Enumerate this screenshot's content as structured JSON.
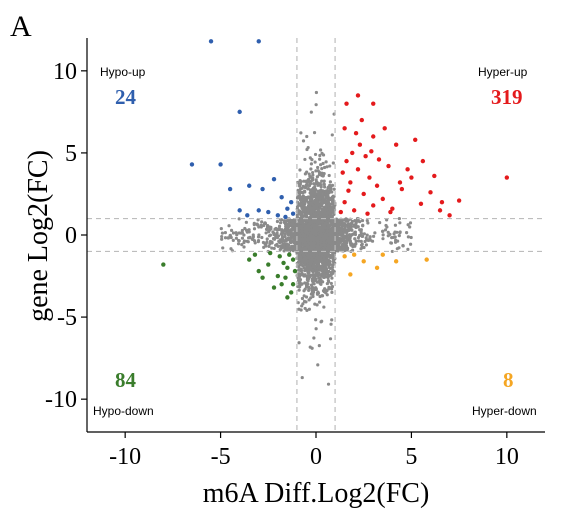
{
  "panel_label": "A",
  "chart_data": {
    "type": "scatter",
    "title": "",
    "xlabel": "m6A Diff.Log2(FC)",
    "ylabel": "gene Log2(FC)",
    "xlim": [
      -12,
      12
    ],
    "ylim": [
      -12,
      12
    ],
    "xticks": [
      -10,
      -5,
      0,
      5,
      10
    ],
    "yticks": [
      -10,
      -5,
      0,
      5,
      10
    ],
    "xtick_labels": [
      "-10",
      "-5",
      "0",
      "5",
      "10"
    ],
    "ytick_labels": [
      "-10",
      "-5",
      "0",
      "5",
      "10"
    ],
    "threshold_lines": {
      "x": [
        -1,
        1
      ],
      "y": [
        -1,
        1
      ],
      "style": "dashed",
      "color": "#bdbdbd"
    },
    "grid": false,
    "quadrants": [
      {
        "name": "Hypo-up",
        "count": "24",
        "color": "#2f5fae",
        "position": "top-left"
      },
      {
        "name": "Hyper-up",
        "count": "319",
        "color": "#e41a1c",
        "position": "top-right"
      },
      {
        "name": "Hypo-down",
        "count": "84",
        "color": "#3a7d2c",
        "position": "bottom-left"
      },
      {
        "name": "Hyper-down",
        "count": "8",
        "color": "#f5a623",
        "position": "bottom-right"
      }
    ],
    "series": [
      {
        "color": "#e41a1c",
        "points": [
          [
            1.5,
            2.0
          ],
          [
            1.8,
            3.2
          ],
          [
            2.0,
            1.5
          ],
          [
            2.2,
            4.0
          ],
          [
            2.5,
            2.5
          ],
          [
            2.8,
            3.5
          ],
          [
            3.0,
            1.8
          ],
          [
            1.6,
            4.5
          ],
          [
            1.9,
            5.0
          ],
          [
            2.3,
            5.5
          ],
          [
            2.6,
            4.8
          ],
          [
            3.2,
            3.0
          ],
          [
            3.5,
            2.2
          ],
          [
            3.8,
            4.2
          ],
          [
            4.0,
            1.6
          ],
          [
            4.5,
            2.8
          ],
          [
            5.0,
            3.5
          ],
          [
            5.5,
            1.9
          ],
          [
            6.0,
            2.6
          ],
          [
            6.5,
            1.5
          ],
          [
            7.0,
            1.2
          ],
          [
            4.2,
            5.5
          ],
          [
            3.0,
            6.0
          ],
          [
            2.4,
            7.0
          ],
          [
            3.6,
            6.5
          ],
          [
            1.4,
            3.8
          ],
          [
            1.7,
            2.7
          ],
          [
            2.1,
            6.2
          ],
          [
            2.9,
            5.1
          ],
          [
            3.3,
            4.6
          ],
          [
            4.8,
            4.0
          ],
          [
            5.6,
            4.5
          ],
          [
            6.2,
            3.6
          ],
          [
            4.4,
            3.2
          ],
          [
            1.3,
            1.4
          ],
          [
            1.5,
            6.5
          ],
          [
            2.7,
            1.3
          ],
          [
            3.9,
            1.4
          ],
          [
            10.0,
            3.5
          ],
          [
            6.6,
            2.0
          ],
          [
            7.5,
            2.1
          ],
          [
            5.2,
            5.8
          ],
          [
            1.6,
            8.0
          ],
          [
            2.2,
            8.5
          ],
          [
            3.0,
            8.0
          ]
        ]
      },
      {
        "color": "#2f5fae",
        "points": [
          [
            -6.5,
            4.3
          ],
          [
            -5.0,
            4.3
          ],
          [
            -4.5,
            2.8
          ],
          [
            -3.0,
            1.5
          ],
          [
            -2.8,
            2.8
          ],
          [
            -3.5,
            3.0
          ],
          [
            -2.5,
            1.4
          ],
          [
            -2.0,
            1.2
          ],
          [
            -1.5,
            1.6
          ],
          [
            -1.3,
            2.0
          ],
          [
            -1.8,
            2.3
          ],
          [
            -4.0,
            1.5
          ],
          [
            -1.2,
            1.3
          ],
          [
            -2.2,
            3.4
          ],
          [
            -1.6,
            1.1
          ],
          [
            -3.6,
            1.2
          ],
          [
            -4.0,
            7.5
          ],
          [
            -5.5,
            11.8
          ],
          [
            -3.0,
            11.8
          ]
        ]
      },
      {
        "color": "#3a7d2c",
        "points": [
          [
            -8.0,
            -1.8
          ],
          [
            -3.5,
            -1.5
          ],
          [
            -3.0,
            -2.2
          ],
          [
            -2.5,
            -1.8
          ],
          [
            -2.0,
            -2.5
          ],
          [
            -1.8,
            -3.0
          ],
          [
            -1.5,
            -2.0
          ],
          [
            -1.2,
            -1.5
          ],
          [
            -1.3,
            -3.5
          ],
          [
            -1.6,
            -2.6
          ],
          [
            -2.2,
            -3.2
          ],
          [
            -2.8,
            -2.6
          ],
          [
            -1.4,
            -1.2
          ],
          [
            -1.1,
            -2.2
          ],
          [
            -1.9,
            -1.3
          ],
          [
            -2.4,
            -1.1
          ],
          [
            -1.2,
            -3.0
          ],
          [
            -1.5,
            -3.8
          ],
          [
            -3.2,
            -1.2
          ],
          [
            -1.7,
            -1.7
          ]
        ]
      },
      {
        "color": "#f5a623",
        "points": [
          [
            1.5,
            -1.3
          ],
          [
            2.5,
            -1.6
          ],
          [
            3.2,
            -2.0
          ],
          [
            4.2,
            -1.6
          ],
          [
            1.8,
            -2.4
          ],
          [
            5.8,
            -1.5
          ],
          [
            2.0,
            -1.2
          ],
          [
            3.5,
            -1.2
          ]
        ]
      }
    ]
  }
}
